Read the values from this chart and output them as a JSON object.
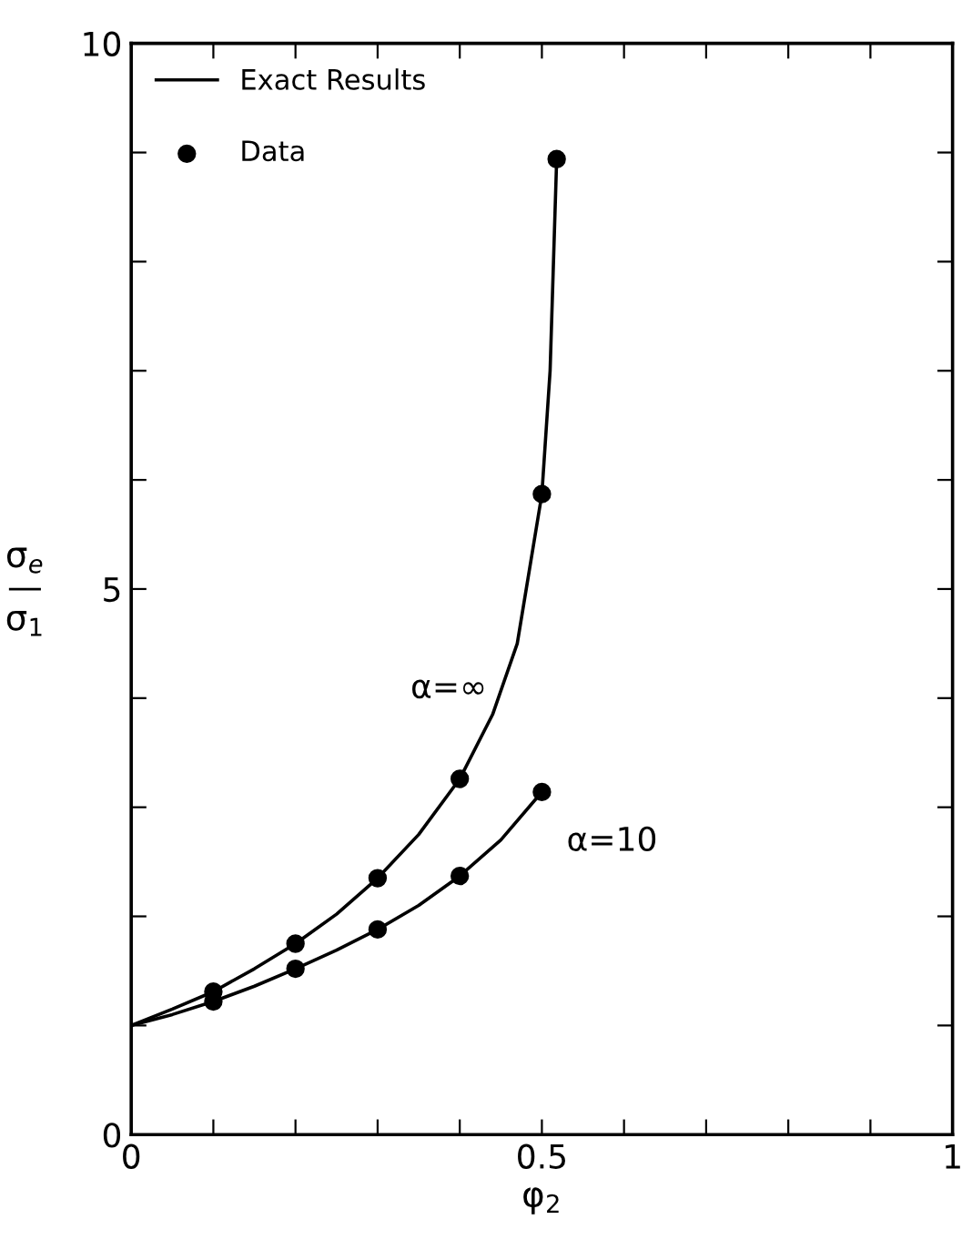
{
  "chart_data": {
    "type": "line",
    "xlabel": "φ$_{2}$",
    "ylabel": "σ$_{e}$\n—\nσ$_{1}$",
    "xlim": [
      0,
      1
    ],
    "ylim": [
      0,
      10
    ],
    "xticks": [
      0,
      {
        "value": 0.1,
        "label": null
      },
      {
        "value": 0.2,
        "label": null
      },
      {
        "value": 0.3,
        "label": null
      },
      {
        "value": 0.4,
        "label": null
      },
      0.5,
      {
        "value": 0.6,
        "label": null
      },
      {
        "value": 0.7,
        "label": null
      },
      {
        "value": 0.8,
        "label": null
      },
      {
        "value": 0.9,
        "label": null
      },
      1
    ],
    "yticks": [
      0,
      {
        "value": 1,
        "label": null
      },
      {
        "value": 2,
        "label": null
      },
      {
        "value": 3,
        "label": null
      },
      {
        "value": 4,
        "label": null
      },
      5,
      {
        "value": 6,
        "label": null
      },
      {
        "value": 7,
        "label": null
      },
      {
        "value": 8,
        "label": null
      },
      {
        "value": 9,
        "label": null
      },
      10
    ],
    "series": [
      {
        "name": "Exact Results",
        "color": "#000000",
        "marker": "none",
        "x": [
          0,
          0.05,
          0.1,
          0.15,
          0.2,
          0.25,
          0.3,
          0.35,
          0.4,
          0.44,
          0.47,
          0.5,
          0.51,
          0.518
        ],
        "values": [
          1,
          1.15,
          1.31,
          1.52,
          1.75,
          2.02,
          2.35,
          2.75,
          3.26,
          3.85,
          4.5,
          5.87,
          7.0,
          8.94
        ]
      },
      {
        "color": "#000000",
        "marker": "none",
        "x": [
          0,
          0.05,
          0.1,
          0.15,
          0.2,
          0.25,
          0.3,
          0.35,
          0.4,
          0.45,
          0.5
        ],
        "values": [
          1,
          1.1,
          1.22,
          1.36,
          1.52,
          1.69,
          1.88,
          2.1,
          2.37,
          2.7,
          3.14
        ]
      },
      {
        "name": "Data",
        "type": "scatter",
        "color": "#000000",
        "marker": "circle",
        "x": [
          0.1,
          0.2,
          0.3,
          0.4,
          0.5,
          0.518
        ],
        "values": [
          1.31,
          1.75,
          2.35,
          3.26,
          5.87,
          8.94
        ]
      },
      {
        "type": "scatter",
        "color": "#000000",
        "marker": "circle",
        "x": [
          0.1,
          0.2,
          0.3,
          0.4,
          0.5
        ],
        "values": [
          1.22,
          1.52,
          1.88,
          2.37,
          3.14
        ]
      }
    ],
    "annotations": [
      "α=∞",
      "α=10"
    ],
    "legend": "top left",
    "grid": false
  }
}
